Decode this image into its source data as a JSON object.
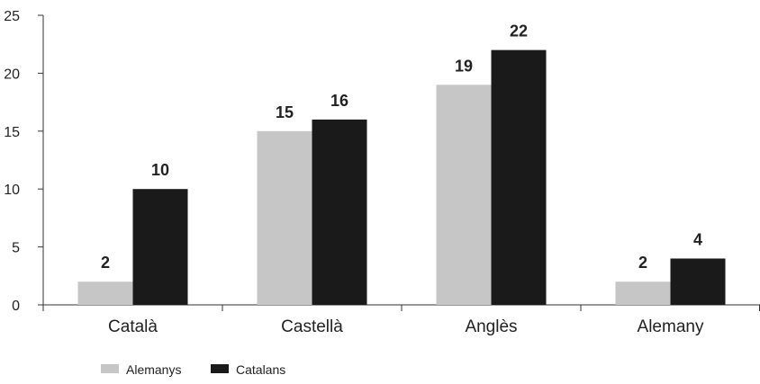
{
  "chart_data": {
    "type": "bar",
    "categories": [
      "Català",
      "Castellà",
      "Anglès",
      "Alemany"
    ],
    "series": [
      {
        "name": "Alemanys",
        "values": [
          2,
          15,
          19,
          2
        ],
        "color": "#c6c6c6"
      },
      {
        "name": "Catalans",
        "values": [
          10,
          16,
          22,
          4
        ],
        "color": "#1a1a1a"
      }
    ],
    "yticks": [
      0,
      5,
      10,
      15,
      20,
      25
    ],
    "ylim": [
      0,
      25
    ],
    "title": "",
    "xlabel": "",
    "ylabel": "",
    "grid": false,
    "legend_position": "bottom-left"
  }
}
